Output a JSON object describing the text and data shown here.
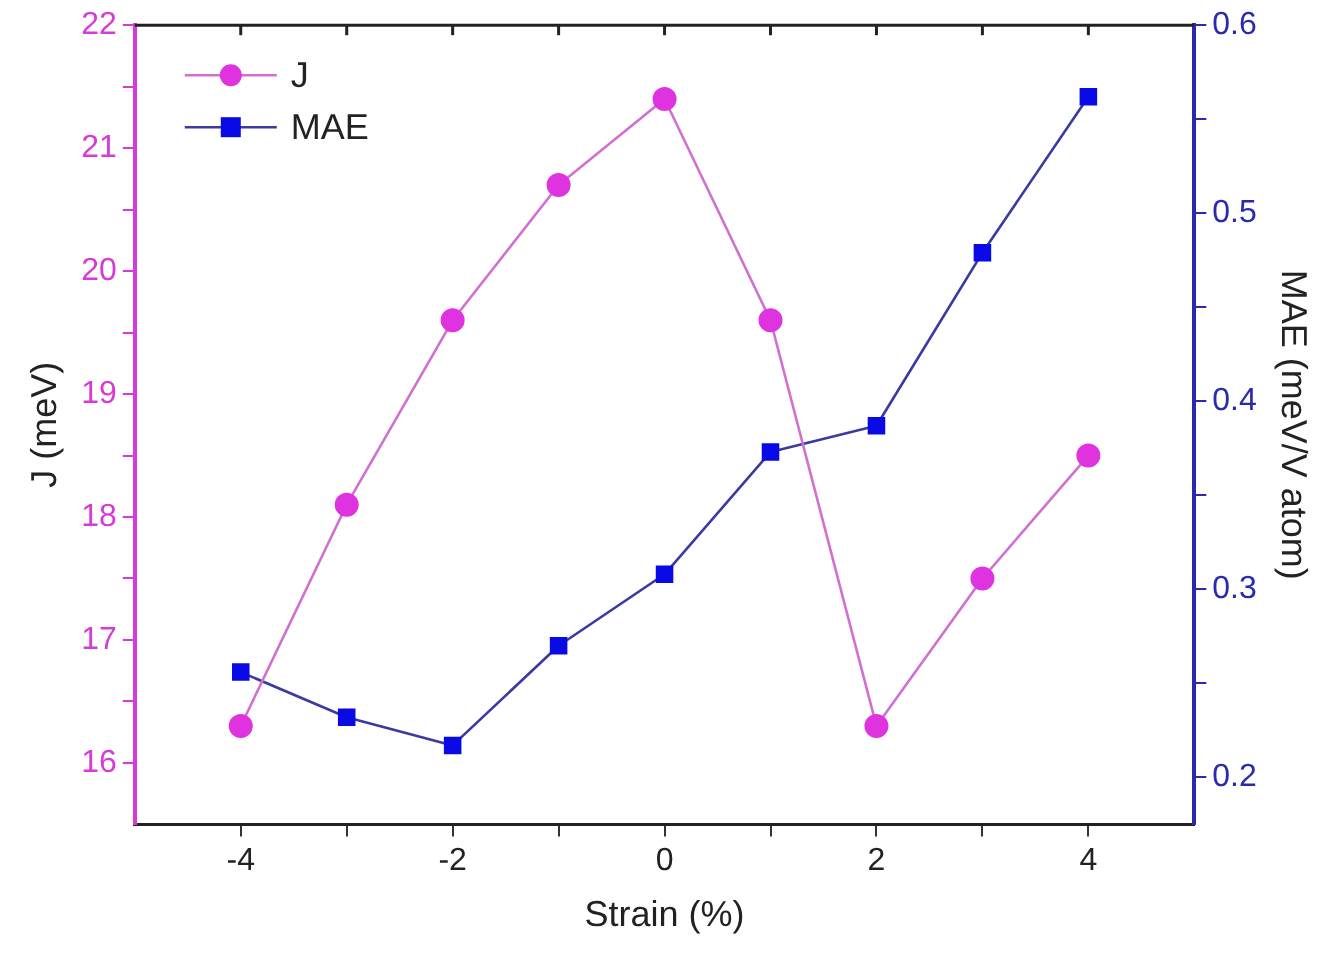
{
  "chart_data": {
    "type": "line",
    "xlabel": "Strain (%)",
    "ylabel": "J (meV)",
    "y2label": "MAE (meV/V atom)",
    "x": [
      -4,
      -3,
      -2,
      -1,
      0,
      1,
      2,
      3,
      4
    ],
    "xlim": [
      -5,
      5
    ],
    "xticks": [
      -4,
      {
        "value": -3,
        "label": null
      },
      -2,
      {
        "value": -1,
        "label": null
      },
      0,
      {
        "value": 1,
        "label": null
      },
      2,
      {
        "value": 3,
        "label": null
      },
      4
    ],
    "ylim": [
      15.5,
      22
    ],
    "yticks": [
      16,
      {
        "value": 16.5,
        "label": null
      },
      17,
      {
        "value": 17.5,
        "label": null
      },
      18,
      {
        "value": 18.5,
        "label": null
      },
      19,
      {
        "value": 19.5,
        "label": null
      },
      20,
      {
        "value": 20.5,
        "label": null
      },
      21,
      {
        "value": 21.5,
        "label": null
      },
      22
    ],
    "y2lim": [
      0.175,
      0.6
    ],
    "y2ticks": [
      0.2,
      {
        "value": 0.25,
        "label": null
      },
      0.3,
      {
        "value": 0.35,
        "label": null
      },
      0.4,
      {
        "value": 0.45,
        "label": null
      },
      0.5,
      {
        "value": 0.55,
        "label": null
      },
      0.6
    ],
    "series": [
      {
        "name": "J",
        "color": "#e033e0",
        "marker": "circle",
        "values": [
          16.3,
          18.1,
          19.6,
          20.7,
          21.4,
          19.6,
          16.3,
          17.5,
          18.5
        ]
      },
      {
        "name": "MAE",
        "color": "#0a0ae6",
        "marker": "square",
        "axis": "y2",
        "values": [
          0.256,
          0.232,
          0.217,
          0.27,
          0.308,
          0.373,
          0.387,
          0.479,
          0.562
        ]
      }
    ],
    "legend": "top left",
    "grid": false
  }
}
